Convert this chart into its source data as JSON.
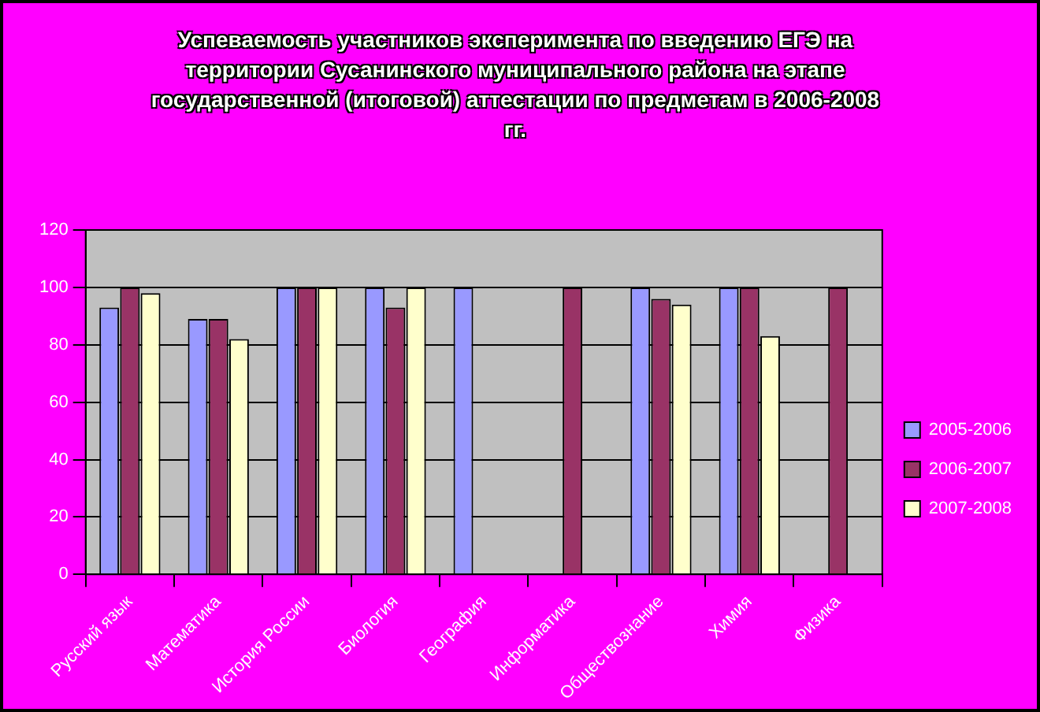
{
  "chart_data": {
    "type": "bar",
    "title": "Успеваемость участников эксперимента по введению ЕГЭ на территории Сусанинского муниципального района на этапе государственной (итоговой) аттестации по предметам в 2006-2008 гг.",
    "categories": [
      "Русский язык",
      "Математика",
      "История России",
      "Биология",
      "География",
      "Информатика",
      "Обществознание",
      "Химия",
      "Физика"
    ],
    "series": [
      {
        "name": "2005-2006",
        "color": "#9999ff",
        "values": [
          93,
          89,
          100,
          100,
          100,
          null,
          100,
          100,
          null
        ]
      },
      {
        "name": "2006-2007",
        "color": "#993366",
        "values": [
          100,
          89,
          100,
          93,
          null,
          100,
          96,
          100,
          100
        ]
      },
      {
        "name": "2007-2008",
        "color": "#ffffcc",
        "values": [
          98,
          82,
          100,
          100,
          null,
          null,
          94,
          83,
          null
        ]
      }
    ],
    "ylim": [
      0,
      120
    ],
    "yticks": [
      0,
      20,
      40,
      60,
      80,
      100,
      120
    ],
    "grid": "y",
    "legend": "right"
  }
}
